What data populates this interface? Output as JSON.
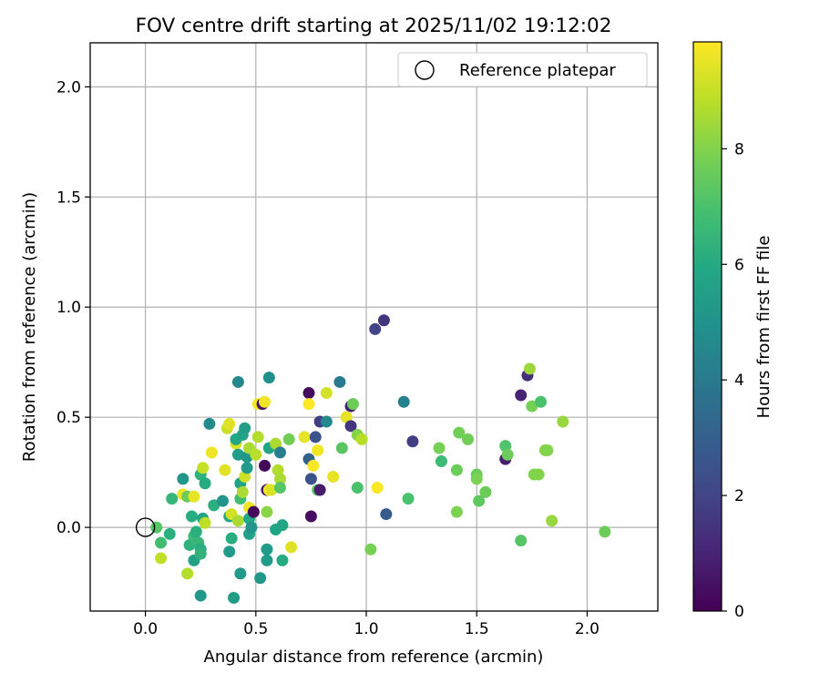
{
  "chart_data": {
    "type": "scatter",
    "title": "FOV centre drift starting at 2025/11/02 19:12:02",
    "xlabel": "Angular distance from reference (arcmin)",
    "ylabel": "Rotation from reference (arcmin)",
    "xlim": [
      -0.25,
      2.32
    ],
    "ylim": [
      -0.38,
      2.2
    ],
    "xticks": [
      "0.0",
      "0.5",
      "1.0",
      "1.5",
      "2.0"
    ],
    "yticks": [
      "0.0",
      "0.5",
      "1.0",
      "1.5",
      "2.0"
    ],
    "grid": true,
    "legend": {
      "position": "top-right",
      "entries": [
        "Reference platepar"
      ]
    },
    "reference_point": {
      "x": 0.0,
      "y": 0.0,
      "label": "Reference platepar"
    },
    "colorbar": {
      "label": "Hours from first FF file",
      "min": 0,
      "max": 9.85,
      "ticks": [
        "0",
        "2",
        "4",
        "6",
        "8"
      ],
      "colormap": "viridis"
    },
    "points": [
      {
        "x": 0.05,
        "y": 0.0,
        "h": 7.2
      },
      {
        "x": 0.07,
        "y": -0.07,
        "h": 6.8
      },
      {
        "x": 0.07,
        "y": -0.14,
        "h": 8.9
      },
      {
        "x": 0.11,
        "y": -0.03,
        "h": 6.2
      },
      {
        "x": 0.12,
        "y": 0.13,
        "h": 6.5
      },
      {
        "x": 0.17,
        "y": 0.22,
        "h": 5.2
      },
      {
        "x": 0.17,
        "y": 0.15,
        "h": 9.6
      },
      {
        "x": 0.19,
        "y": 0.14,
        "h": 7.6
      },
      {
        "x": 0.19,
        "y": -0.21,
        "h": 8.7
      },
      {
        "x": 0.2,
        "y": -0.08,
        "h": 6.3
      },
      {
        "x": 0.21,
        "y": 0.05,
        "h": 6.1
      },
      {
        "x": 0.22,
        "y": -0.15,
        "h": 5.6
      },
      {
        "x": 0.22,
        "y": -0.04,
        "h": 6.6
      },
      {
        "x": 0.23,
        "y": -0.02,
        "h": 6.2
      },
      {
        "x": 0.22,
        "y": 0.14,
        "h": 9.5
      },
      {
        "x": 0.24,
        "y": -0.07,
        "h": 6.5
      },
      {
        "x": 0.25,
        "y": 0.24,
        "h": 6.3
      },
      {
        "x": 0.25,
        "y": -0.1,
        "h": 6.1
      },
      {
        "x": 0.25,
        "y": -0.12,
        "h": 6.4
      },
      {
        "x": 0.26,
        "y": 0.27,
        "h": 9.0
      },
      {
        "x": 0.26,
        "y": 0.04,
        "h": 5.8
      },
      {
        "x": 0.25,
        "y": -0.31,
        "h": 5.2
      },
      {
        "x": 0.27,
        "y": 0.02,
        "h": 8.9
      },
      {
        "x": 0.27,
        "y": 0.2,
        "h": 6.0
      },
      {
        "x": 0.29,
        "y": 0.47,
        "h": 4.7
      },
      {
        "x": 0.3,
        "y": 0.34,
        "h": 9.6
      },
      {
        "x": 0.31,
        "y": 0.1,
        "h": 6.2
      },
      {
        "x": 0.35,
        "y": 0.12,
        "h": 5.1
      },
      {
        "x": 0.36,
        "y": 0.26,
        "h": 9.4
      },
      {
        "x": 0.37,
        "y": 0.45,
        "h": 9.1
      },
      {
        "x": 0.38,
        "y": 0.47,
        "h": 9.4
      },
      {
        "x": 0.38,
        "y": 0.05,
        "h": 6.0
      },
      {
        "x": 0.38,
        "y": -0.11,
        "h": 5.3
      },
      {
        "x": 0.39,
        "y": -0.05,
        "h": 6.1
      },
      {
        "x": 0.39,
        "y": 0.06,
        "h": 9.2
      },
      {
        "x": 0.4,
        "y": -0.32,
        "h": 5.5
      },
      {
        "x": 0.41,
        "y": 0.38,
        "h": 9.3
      },
      {
        "x": 0.41,
        "y": 0.4,
        "h": 5.9
      },
      {
        "x": 0.42,
        "y": 0.03,
        "h": 8.6
      },
      {
        "x": 0.42,
        "y": 0.66,
        "h": 4.6
      },
      {
        "x": 0.42,
        "y": 0.33,
        "h": 5.4
      },
      {
        "x": 0.43,
        "y": 0.2,
        "h": 5.7
      },
      {
        "x": 0.43,
        "y": 0.13,
        "h": 6.8
      },
      {
        "x": 0.43,
        "y": -0.21,
        "h": 5.3
      },
      {
        "x": 0.44,
        "y": 0.42,
        "h": 5.7
      },
      {
        "x": 0.44,
        "y": 0.16,
        "h": 8.6
      },
      {
        "x": 0.45,
        "y": 0.23,
        "h": 9.1
      },
      {
        "x": 0.45,
        "y": 0.45,
        "h": 5.5
      },
      {
        "x": 0.46,
        "y": 0.27,
        "h": 5.3
      },
      {
        "x": 0.46,
        "y": 0.32,
        "h": 5.2
      },
      {
        "x": 0.47,
        "y": 0.36,
        "h": 8.6
      },
      {
        "x": 0.47,
        "y": 0.04,
        "h": 5.9
      },
      {
        "x": 0.47,
        "y": 0.09,
        "h": 9.6
      },
      {
        "x": 0.47,
        "y": -0.03,
        "h": 5.6
      },
      {
        "x": 0.48,
        "y": 0.0,
        "h": 5.1
      },
      {
        "x": 0.49,
        "y": 0.07,
        "h": 0.3
      },
      {
        "x": 0.5,
        "y": 0.33,
        "h": 8.8
      },
      {
        "x": 0.51,
        "y": 0.41,
        "h": 8.7
      },
      {
        "x": 0.51,
        "y": 0.56,
        "h": 9.7
      },
      {
        "x": 0.52,
        "y": -0.23,
        "h": 5.2
      },
      {
        "x": 0.53,
        "y": 0.56,
        "h": 0.5
      },
      {
        "x": 0.54,
        "y": 0.57,
        "h": 9.6
      },
      {
        "x": 0.54,
        "y": 0.28,
        "h": 0.2
      },
      {
        "x": 0.55,
        "y": 0.07,
        "h": 8.1
      },
      {
        "x": 0.55,
        "y": 0.17,
        "h": 0.5
      },
      {
        "x": 0.55,
        "y": -0.15,
        "h": 5.4
      },
      {
        "x": 0.55,
        "y": -0.1,
        "h": 5.3
      },
      {
        "x": 0.56,
        "y": 0.36,
        "h": 5.8
      },
      {
        "x": 0.56,
        "y": 0.68,
        "h": 4.9
      },
      {
        "x": 0.56,
        "y": 0.17,
        "h": 9.8
      },
      {
        "x": 0.57,
        "y": 0.17,
        "h": 9.3
      },
      {
        "x": 0.59,
        "y": 0.38,
        "h": 8.6
      },
      {
        "x": 0.59,
        "y": -0.01,
        "h": 5.8
      },
      {
        "x": 0.6,
        "y": 0.26,
        "h": 8.7
      },
      {
        "x": 0.61,
        "y": 0.22,
        "h": 8.6
      },
      {
        "x": 0.61,
        "y": 0.34,
        "h": 4.2
      },
      {
        "x": 0.61,
        "y": 0.18,
        "h": 7.2
      },
      {
        "x": 0.62,
        "y": 0.01,
        "h": 5.8
      },
      {
        "x": 0.62,
        "y": -0.15,
        "h": 6.0
      },
      {
        "x": 0.65,
        "y": 0.4,
        "h": 7.7
      },
      {
        "x": 0.66,
        "y": -0.09,
        "h": 9.4
      },
      {
        "x": 0.72,
        "y": 0.41,
        "h": 9.5
      },
      {
        "x": 0.74,
        "y": 0.61,
        "h": 0.3
      },
      {
        "x": 0.74,
        "y": 0.56,
        "h": 9.8
      },
      {
        "x": 0.74,
        "y": 0.31,
        "h": 3.1
      },
      {
        "x": 0.75,
        "y": 0.05,
        "h": 0.4
      },
      {
        "x": 0.75,
        "y": 0.22,
        "h": 2.5
      },
      {
        "x": 0.76,
        "y": 0.28,
        "h": 9.8
      },
      {
        "x": 0.77,
        "y": 0.41,
        "h": 2.5
      },
      {
        "x": 0.78,
        "y": 0.17,
        "h": 7.2
      },
      {
        "x": 0.78,
        "y": 0.35,
        "h": 9.7
      },
      {
        "x": 0.79,
        "y": 0.48,
        "h": 1.8
      },
      {
        "x": 0.79,
        "y": 0.17,
        "h": 0.7
      },
      {
        "x": 0.82,
        "y": 0.48,
        "h": 4.6
      },
      {
        "x": 0.82,
        "y": 0.61,
        "h": 9.2
      },
      {
        "x": 0.85,
        "y": 0.23,
        "h": 9.5
      },
      {
        "x": 0.88,
        "y": 0.66,
        "h": 4.0
      },
      {
        "x": 0.89,
        "y": 0.36,
        "h": 7.3
      },
      {
        "x": 0.91,
        "y": 0.5,
        "h": 9.5
      },
      {
        "x": 0.93,
        "y": 0.46,
        "h": 1.5
      },
      {
        "x": 0.93,
        "y": 0.55,
        "h": 0.8
      },
      {
        "x": 0.94,
        "y": 0.56,
        "h": 7.6
      },
      {
        "x": 0.96,
        "y": 0.18,
        "h": 7.0
      },
      {
        "x": 0.96,
        "y": 0.42,
        "h": 8.0
      },
      {
        "x": 0.98,
        "y": 0.4,
        "h": 8.8
      },
      {
        "x": 1.02,
        "y": -0.1,
        "h": 7.8
      },
      {
        "x": 1.04,
        "y": 0.9,
        "h": 2.0
      },
      {
        "x": 1.05,
        "y": 0.18,
        "h": 9.8
      },
      {
        "x": 1.08,
        "y": 0.94,
        "h": 1.5
      },
      {
        "x": 1.09,
        "y": 0.06,
        "h": 2.8
      },
      {
        "x": 1.17,
        "y": 0.57,
        "h": 4.3
      },
      {
        "x": 1.19,
        "y": 0.13,
        "h": 7.0
      },
      {
        "x": 1.21,
        "y": 0.39,
        "h": 1.8
      },
      {
        "x": 1.33,
        "y": 0.36,
        "h": 7.8
      },
      {
        "x": 1.34,
        "y": 0.3,
        "h": 6.7
      },
      {
        "x": 1.41,
        "y": 0.26,
        "h": 7.6
      },
      {
        "x": 1.41,
        "y": 0.07,
        "h": 7.9
      },
      {
        "x": 1.42,
        "y": 0.43,
        "h": 7.7
      },
      {
        "x": 1.46,
        "y": 0.4,
        "h": 7.7
      },
      {
        "x": 1.5,
        "y": 0.24,
        "h": 7.6
      },
      {
        "x": 1.5,
        "y": 0.22,
        "h": 7.9
      },
      {
        "x": 1.51,
        "y": 0.12,
        "h": 7.4
      },
      {
        "x": 1.54,
        "y": 0.16,
        "h": 7.6
      },
      {
        "x": 1.63,
        "y": 0.37,
        "h": 7.1
      },
      {
        "x": 1.63,
        "y": 0.31,
        "h": 0.8
      },
      {
        "x": 1.64,
        "y": 0.33,
        "h": 7.6
      },
      {
        "x": 1.7,
        "y": 0.6,
        "h": 1.0
      },
      {
        "x": 1.7,
        "y": -0.06,
        "h": 7.2
      },
      {
        "x": 1.73,
        "y": 0.69,
        "h": 1.3
      },
      {
        "x": 1.74,
        "y": 0.72,
        "h": 8.4
      },
      {
        "x": 1.75,
        "y": 0.55,
        "h": 7.8
      },
      {
        "x": 1.76,
        "y": 0.24,
        "h": 8.0
      },
      {
        "x": 1.78,
        "y": 0.24,
        "h": 8.0
      },
      {
        "x": 1.79,
        "y": 0.57,
        "h": 7.0
      },
      {
        "x": 1.81,
        "y": 0.35,
        "h": 8.1
      },
      {
        "x": 1.82,
        "y": 0.35,
        "h": 8.0
      },
      {
        "x": 1.84,
        "y": 0.03,
        "h": 8.3
      },
      {
        "x": 1.89,
        "y": 0.48,
        "h": 8.3
      },
      {
        "x": 2.08,
        "y": -0.02,
        "h": 7.6
      }
    ]
  }
}
